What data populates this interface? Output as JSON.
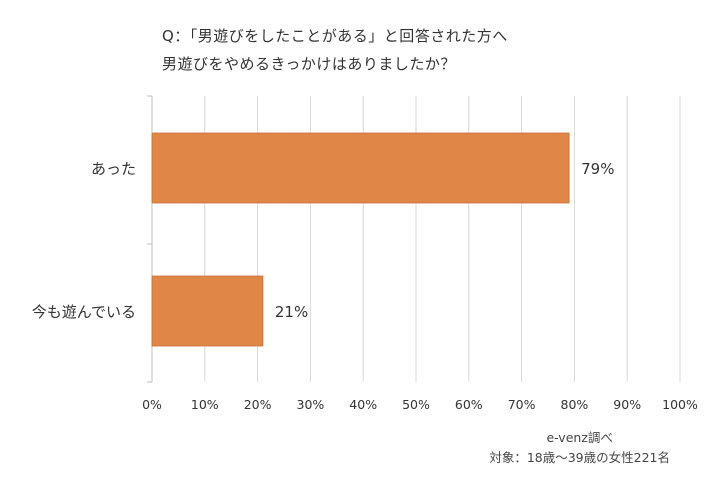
{
  "title_lines": [
    "Q：「男遊びをしたことがある」と回答された方へ",
    "男遊びをやめるきっかけはありましたか？"
  ],
  "source_lines": [
    "e-venz調べ",
    "対象：18歳〜39歳の女性221名"
  ],
  "colors": {
    "bar": "#e08646",
    "grid": "#d9d9d9",
    "axis": "#bfbfbf",
    "text": "#333333"
  },
  "chart_data": {
    "type": "bar",
    "orientation": "horizontal",
    "categories": [
      "あった",
      "今も遊んでいる"
    ],
    "values": [
      79,
      21
    ],
    "value_labels": [
      "79%",
      "21%"
    ],
    "xlim": [
      0,
      100
    ],
    "x_ticks": [
      "0%",
      "10%",
      "20%",
      "30%",
      "40%",
      "50%",
      "60%",
      "70%",
      "80%",
      "90%",
      "100%"
    ],
    "grid": true
  }
}
